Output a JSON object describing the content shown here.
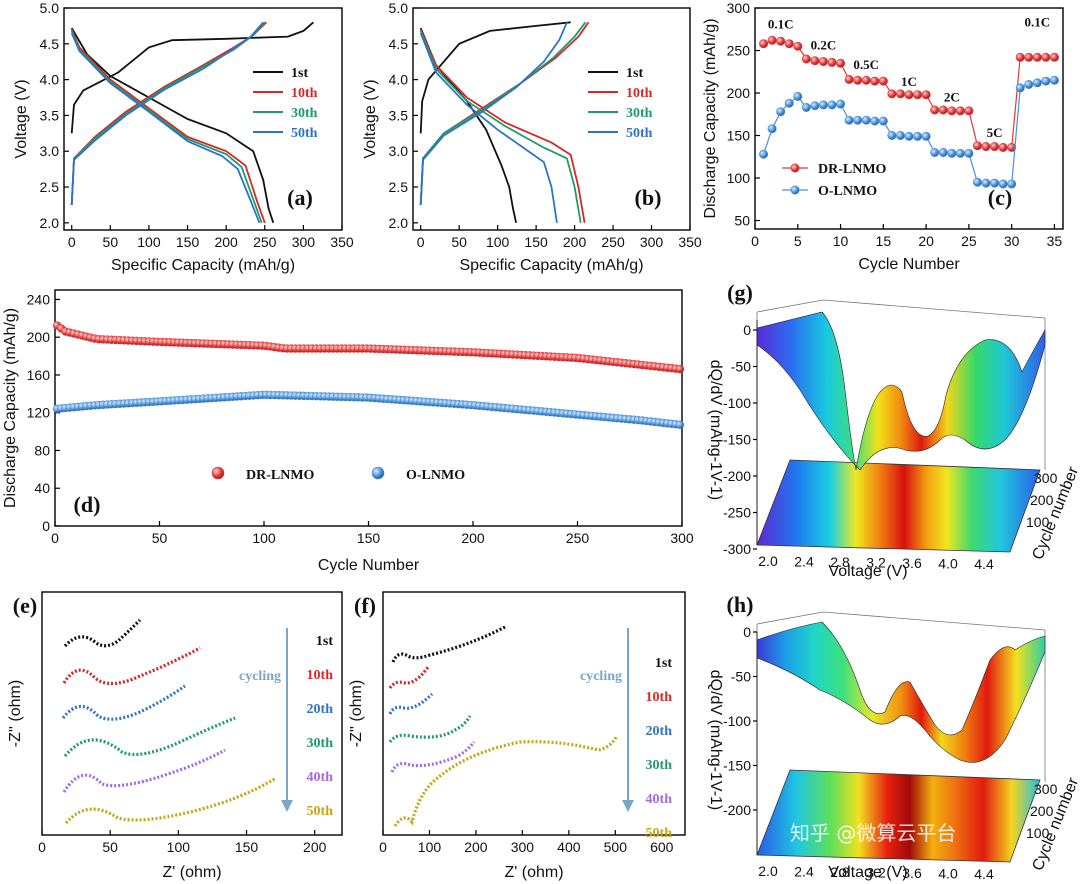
{
  "colors": {
    "black": "#111111",
    "red": "#d62728",
    "green": "#1f9a6a",
    "blue": "#2e73c8",
    "purple": "#a36ae0",
    "gold": "#c8a414",
    "drRed": "#e03a3a",
    "oBlue": "#4a90d9"
  },
  "chart_data": [
    {
      "panel": "(a)",
      "type": "line",
      "xlabel": "Specific Capacity (mAh/g)",
      "ylabel": "Voltage (V)",
      "xlim": [
        -10,
        350
      ],
      "ylim": [
        1.9,
        5.0
      ],
      "xticks": [
        0,
        50,
        100,
        150,
        200,
        250,
        300,
        350
      ],
      "yticks": [
        2.0,
        2.5,
        3.0,
        3.5,
        4.0,
        4.5,
        5.0
      ],
      "series": [
        {
          "name": "1st",
          "color": "#111111",
          "charge": [
            [
              0,
              3.25
            ],
            [
              3,
              3.65
            ],
            [
              15,
              3.85
            ],
            [
              60,
              4.1
            ],
            [
              100,
              4.45
            ],
            [
              130,
              4.55
            ],
            [
              200,
              4.57
            ],
            [
              280,
              4.6
            ],
            [
              300,
              4.68
            ],
            [
              313,
              4.8
            ]
          ],
          "discharge": [
            [
              0,
              4.72
            ],
            [
              20,
              4.35
            ],
            [
              50,
              4.05
            ],
            [
              100,
              3.75
            ],
            [
              150,
              3.45
            ],
            [
              200,
              3.25
            ],
            [
              235,
              3.0
            ],
            [
              248,
              2.6
            ],
            [
              255,
              2.2
            ],
            [
              261,
              2.0
            ]
          ]
        },
        {
          "name": "10th",
          "color": "#d62728",
          "charge": [
            [
              0,
              2.25
            ],
            [
              3,
              2.9
            ],
            [
              30,
              3.2
            ],
            [
              70,
              3.55
            ],
            [
              120,
              3.9
            ],
            [
              170,
              4.2
            ],
            [
              210,
              4.45
            ],
            [
              235,
              4.62
            ],
            [
              252,
              4.8
            ]
          ],
          "discharge": [
            [
              0,
              4.7
            ],
            [
              10,
              4.45
            ],
            [
              50,
              4.0
            ],
            [
              100,
              3.6
            ],
            [
              150,
              3.2
            ],
            [
              200,
              3.0
            ],
            [
              225,
              2.8
            ],
            [
              240,
              2.3
            ],
            [
              250,
              2.0
            ]
          ]
        },
        {
          "name": "30th",
          "color": "#1f9a6a",
          "charge": [
            [
              0,
              2.25
            ],
            [
              3,
              2.9
            ],
            [
              30,
              3.18
            ],
            [
              70,
              3.52
            ],
            [
              120,
              3.88
            ],
            [
              170,
              4.18
            ],
            [
              210,
              4.42
            ],
            [
              235,
              4.62
            ],
            [
              250,
              4.8
            ]
          ],
          "discharge": [
            [
              0,
              4.68
            ],
            [
              10,
              4.42
            ],
            [
              50,
              3.97
            ],
            [
              100,
              3.57
            ],
            [
              150,
              3.17
            ],
            [
              200,
              2.96
            ],
            [
              220,
              2.78
            ],
            [
              236,
              2.3
            ],
            [
              246,
              2.0
            ]
          ]
        },
        {
          "name": "50th",
          "color": "#2e73c8",
          "charge": [
            [
              0,
              2.25
            ],
            [
              3,
              2.88
            ],
            [
              30,
              3.15
            ],
            [
              70,
              3.5
            ],
            [
              120,
              3.86
            ],
            [
              170,
              4.15
            ],
            [
              205,
              4.4
            ],
            [
              232,
              4.6
            ],
            [
              248,
              4.8
            ]
          ],
          "discharge": [
            [
              0,
              4.65
            ],
            [
              10,
              4.4
            ],
            [
              50,
              3.95
            ],
            [
              100,
              3.55
            ],
            [
              150,
              3.14
            ],
            [
              195,
              2.93
            ],
            [
              215,
              2.75
            ],
            [
              232,
              2.3
            ],
            [
              243,
              2.0
            ]
          ]
        }
      ]
    },
    {
      "panel": "(b)",
      "type": "line",
      "xlabel": "Specific Capacity (mAh/g)",
      "ylabel": "Voltage (V)",
      "xlim": [
        -10,
        350
      ],
      "ylim": [
        1.9,
        5.0
      ],
      "xticks": [
        0,
        50,
        100,
        150,
        200,
        250,
        300,
        350
      ],
      "yticks": [
        2.0,
        2.5,
        3.0,
        3.5,
        4.0,
        4.5,
        5.0
      ],
      "series": [
        {
          "name": "1st",
          "color": "#111111",
          "charge": [
            [
              0,
              3.25
            ],
            [
              2,
              3.7
            ],
            [
              10,
              4.0
            ],
            [
              30,
              4.25
            ],
            [
              50,
              4.5
            ],
            [
              90,
              4.68
            ],
            [
              150,
              4.75
            ],
            [
              195,
              4.8
            ]
          ],
          "discharge": [
            [
              0,
              4.72
            ],
            [
              20,
              4.2
            ],
            [
              60,
              3.7
            ],
            [
              85,
              3.3
            ],
            [
              105,
              2.8
            ],
            [
              115,
              2.5
            ],
            [
              120,
              2.2
            ],
            [
              124,
              2.0
            ]
          ]
        },
        {
          "name": "10th",
          "color": "#d62728",
          "charge": [
            [
              0,
              2.25
            ],
            [
              3,
              2.9
            ],
            [
              30,
              3.25
            ],
            [
              80,
              3.6
            ],
            [
              130,
              3.95
            ],
            [
              175,
              4.3
            ],
            [
              205,
              4.6
            ],
            [
              218,
              4.8
            ]
          ],
          "discharge": [
            [
              0,
              4.7
            ],
            [
              20,
              4.2
            ],
            [
              60,
              3.75
            ],
            [
              110,
              3.4
            ],
            [
              170,
              3.12
            ],
            [
              195,
              2.95
            ],
            [
              205,
              2.5
            ],
            [
              213,
              2.0
            ]
          ]
        },
        {
          "name": "30th",
          "color": "#1f9a6a",
          "charge": [
            [
              0,
              2.25
            ],
            [
              3,
              2.9
            ],
            [
              30,
              3.25
            ],
            [
              80,
              3.58
            ],
            [
              130,
              3.95
            ],
            [
              172,
              4.3
            ],
            [
              200,
              4.6
            ],
            [
              214,
              4.8
            ]
          ],
          "discharge": [
            [
              0,
              4.68
            ],
            [
              20,
              4.15
            ],
            [
              60,
              3.7
            ],
            [
              110,
              3.35
            ],
            [
              160,
              3.05
            ],
            [
              190,
              2.9
            ],
            [
              200,
              2.5
            ],
            [
              208,
              2.0
            ]
          ]
        },
        {
          "name": "50th",
          "color": "#2e73c8",
          "charge": [
            [
              0,
              2.25
            ],
            [
              3,
              2.88
            ],
            [
              30,
              3.22
            ],
            [
              80,
              3.55
            ],
            [
              125,
              3.9
            ],
            [
              160,
              4.25
            ],
            [
              180,
              4.55
            ],
            [
              190,
              4.8
            ]
          ],
          "discharge": [
            [
              0,
              4.65
            ],
            [
              20,
              4.1
            ],
            [
              60,
              3.65
            ],
            [
              100,
              3.3
            ],
            [
              140,
              3.0
            ],
            [
              160,
              2.85
            ],
            [
              170,
              2.5
            ],
            [
              177,
              2.0
            ]
          ]
        }
      ]
    },
    {
      "panel": "(c)",
      "type": "scatter",
      "xlabel": "Cycle Number",
      "ylabel": "Discharge Capacity (mAh/g)",
      "xlim": [
        0,
        36
      ],
      "ylim": [
        40,
        300
      ],
      "xticks": [
        0,
        5,
        10,
        15,
        20,
        25,
        30,
        35
      ],
      "yticks": [
        50,
        100,
        150,
        200,
        250,
        300
      ],
      "rate_labels": [
        "0.1C",
        "0.2C",
        "0.5C",
        "1C",
        "2C",
        "5C",
        "0.1C"
      ],
      "series": [
        {
          "name": "DR-LNMO",
          "color": "#e03a3a",
          "values": [
            258,
            262,
            261,
            258,
            255,
            240,
            238,
            237,
            236,
            235,
            216,
            215,
            215,
            214,
            214,
            199,
            199,
            198,
            198,
            198,
            180,
            180,
            179,
            179,
            179,
            138,
            137,
            137,
            136,
            136,
            242,
            242,
            242,
            242,
            242
          ]
        },
        {
          "name": "O-LNMO",
          "color": "#4a90d9",
          "values": [
            128,
            158,
            178,
            188,
            196,
            183,
            185,
            186,
            186,
            187,
            168,
            168,
            168,
            167,
            167,
            150,
            150,
            149,
            149,
            149,
            130,
            130,
            129,
            129,
            129,
            95,
            94,
            94,
            93,
            93,
            206,
            210,
            212,
            214,
            215
          ]
        }
      ]
    },
    {
      "panel": "(d)",
      "type": "scatter",
      "xlabel": "Cycle Number",
      "ylabel": "Discharge Capacity (mAh/g)",
      "xlim": [
        0,
        300
      ],
      "ylim": [
        0,
        250
      ],
      "xticks": [
        0,
        50,
        100,
        150,
        200,
        250,
        300
      ],
      "yticks": [
        0,
        40,
        80,
        120,
        160,
        200,
        240
      ],
      "series": [
        {
          "name": "DR-LNMO",
          "color": "#e03a3a",
          "anchors": [
            [
              0,
              214
            ],
            [
              5,
              206
            ],
            [
              20,
              198
            ],
            [
              50,
              195
            ],
            [
              100,
              191
            ],
            [
              110,
              188
            ],
            [
              150,
              188
            ],
            [
              200,
              184
            ],
            [
              250,
              178
            ],
            [
              300,
              166
            ]
          ]
        },
        {
          "name": "O-LNMO",
          "color": "#4a90d9",
          "anchors": [
            [
              0,
              124
            ],
            [
              20,
              128
            ],
            [
              50,
              132
            ],
            [
              100,
              139
            ],
            [
              150,
              136
            ],
            [
              200,
              128
            ],
            [
              250,
              118
            ],
            [
              280,
              112
            ],
            [
              300,
              107
            ]
          ]
        }
      ]
    },
    {
      "panel": "(e)",
      "type": "line",
      "xlabel": "Z' (ohm)",
      "ylabel": "-Z'' (ohm)",
      "xlim": [
        0,
        220
      ],
      "xticks": [
        0,
        50,
        100,
        150,
        200
      ],
      "series_labels": [
        "1st",
        "10th",
        "20th",
        "30th",
        "40th",
        "50th"
      ],
      "arrow_label": "cycling"
    },
    {
      "panel": "(f)",
      "type": "line",
      "xlabel": "Z' (ohm)",
      "ylabel": "-Z'' (ohm)",
      "xlim": [
        0,
        650
      ],
      "xticks": [
        0,
        100,
        200,
        300,
        400,
        500,
        600
      ],
      "series_labels": [
        "1st",
        "10th",
        "20th",
        "30th",
        "40th",
        "50th"
      ],
      "arrow_label": "cycling"
    },
    {
      "panel": "(g)",
      "type": "heatmap",
      "xlabel": "Voltage (V)",
      "ylabel": "dQ/dV (mAhg-1V-1)",
      "zlabel": "Cycle number",
      "xticks": [
        "2.0",
        "2.4",
        "2.8",
        "3.2",
        "3.6",
        "4.0",
        "4.4"
      ],
      "yticks": [
        "0",
        "-50",
        "-100",
        "-150",
        "-200",
        "-250",
        "-300"
      ],
      "zticks": [
        "100",
        "200",
        "300"
      ]
    },
    {
      "panel": "(h)",
      "type": "heatmap",
      "xlabel": "Voltage (V)",
      "ylabel": "dQ/dV (mAhg-1V-1)",
      "zlabel": "Cycle number",
      "xticks": [
        "2.0",
        "2.4",
        "2.8",
        "3.2",
        "3.6",
        "4.0",
        "4.4"
      ],
      "yticks": [
        "0",
        "-50",
        "-100",
        "-150",
        "-200"
      ],
      "zticks": [
        "100",
        "200",
        "300"
      ]
    }
  ],
  "watermark": "知乎 @微算云平台"
}
